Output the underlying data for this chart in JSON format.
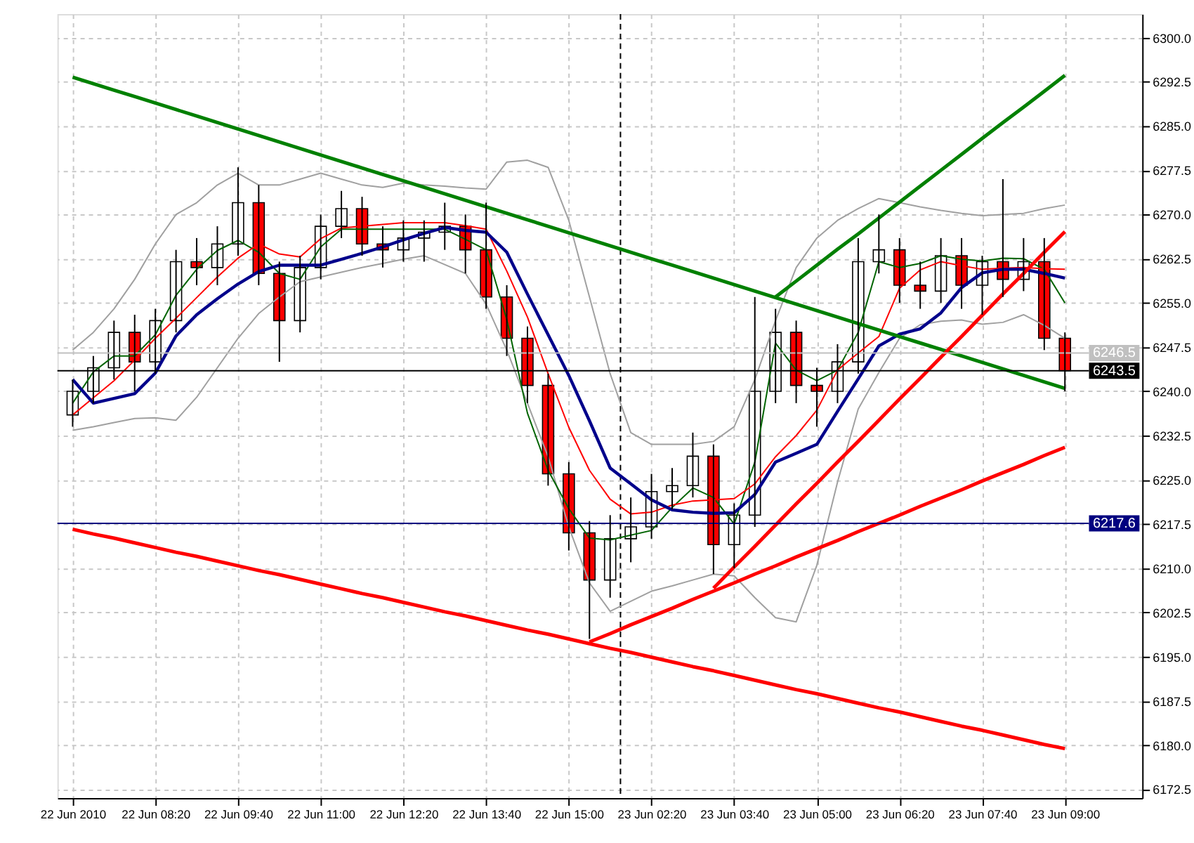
{
  "chart_data": {
    "type": "candlestick",
    "categories": [
      "22 Jun 2010",
      null,
      null,
      null,
      "22 Jun 08:20",
      null,
      null,
      null,
      "22 Jun 09:40",
      null,
      null,
      null,
      "22 Jun 11:00",
      null,
      null,
      null,
      "22 Jun 12:20",
      null,
      null,
      null,
      "22 Jun 13:40",
      null,
      null,
      null,
      "22 Jun 15:00",
      null,
      null,
      null,
      "23 Jun 02:20",
      null,
      null,
      null,
      "23 Jun 03:40",
      null,
      null,
      null,
      "23 Jun 05:00",
      null,
      null,
      null,
      "23 Jun 06:20",
      null,
      null,
      null,
      "23 Jun 07:40",
      null,
      null,
      null,
      "23 Jun 09:00"
    ],
    "ohlc": [
      [
        6236,
        6242,
        6234,
        6240
      ],
      [
        6240,
        6246,
        6238,
        6244
      ],
      [
        6244,
        6252,
        6242,
        6250
      ],
      [
        6250,
        6253,
        6240,
        6245
      ],
      [
        6245,
        6254,
        6243,
        6252
      ],
      [
        6252,
        6264,
        6250,
        6262
      ],
      [
        6262,
        6266,
        6258,
        6261
      ],
      [
        6261,
        6268,
        6258,
        6265
      ],
      [
        6265,
        6278,
        6263,
        6272
      ],
      [
        6272,
        6275,
        6258,
        6260
      ],
      [
        6260,
        6262,
        6245,
        6252
      ],
      [
        6252,
        6263,
        6250,
        6261
      ],
      [
        6261,
        6270,
        6259,
        6268
      ],
      [
        6268,
        6274,
        6266,
        6271
      ],
      [
        6271,
        6273,
        6263,
        6265
      ],
      [
        6265,
        6268,
        6261,
        6264
      ],
      [
        6264,
        6269,
        6262,
        6266
      ],
      [
        6266,
        6269,
        6262,
        6267
      ],
      [
        6267,
        6272,
        6264,
        6268
      ],
      [
        6268,
        6270,
        6260,
        6264
      ],
      [
        6264,
        6272,
        6254,
        6256
      ],
      [
        6256,
        6258,
        6246,
        6249
      ],
      [
        6249,
        6251,
        6238,
        6241
      ],
      [
        6241,
        6243,
        6224,
        6226
      ],
      [
        6226,
        6228,
        6213,
        6216
      ],
      [
        6216,
        6218,
        6198,
        6208
      ],
      [
        6208,
        6219,
        6205,
        6215
      ],
      [
        6215,
        6222,
        6211,
        6217
      ],
      [
        6217,
        6226,
        6215,
        6223
      ],
      [
        6223,
        6227,
        6220,
        6224
      ],
      [
        6224,
        6233,
        6222,
        6229
      ],
      [
        6229,
        6231,
        6209,
        6214
      ],
      [
        6214,
        6221,
        6210,
        6219
      ],
      [
        6219,
        6256,
        6217,
        6240
      ],
      [
        6240,
        6254,
        6238,
        6250
      ],
      [
        6250,
        6252,
        6238,
        6241
      ],
      [
        6241,
        6244,
        6234,
        6240
      ],
      [
        6240,
        6248,
        6238,
        6245
      ],
      [
        6245,
        6266,
        6243,
        6262
      ],
      [
        6262,
        6270,
        6260,
        6264
      ],
      [
        6264,
        6266,
        6255,
        6258
      ],
      [
        6258,
        6262,
        6254,
        6257
      ],
      [
        6257,
        6266,
        6255,
        6263
      ],
      [
        6263,
        6266,
        6254,
        6258
      ],
      [
        6258,
        6263,
        6253,
        6262
      ],
      [
        6262,
        6276,
        6256,
        6259
      ],
      [
        6259,
        6266,
        6257,
        6262
      ],
      [
        6262,
        6266,
        6247,
        6249
      ],
      [
        6249,
        6250,
        6240,
        6243.5
      ]
    ],
    "series": [
      {
        "type": "line",
        "color": "#a0a0a0",
        "values": [
          6247,
          6250,
          6254,
          6259,
          6265,
          6270,
          6272,
          6275,
          6277,
          6275,
          6275,
          6276,
          6277,
          6276,
          6275,
          6274.6,
          6275.3,
          6275,
          6274.8,
          6274.5,
          6274.3,
          6278.9,
          6279.2,
          6278,
          6269,
          6256,
          6243,
          6233,
          6231,
          6231,
          6231,
          6231.5,
          6234,
          6242,
          6252,
          6261,
          6266,
          6269,
          6271,
          6272.7,
          6272,
          6271.3,
          6270.7,
          6270.2,
          6269.8,
          6270,
          6270.2,
          6271,
          6271.6
        ]
      },
      {
        "type": "line",
        "color": "#a0a0a0",
        "values": [
          6233.4,
          6234,
          6234.7,
          6235.4,
          6235.5,
          6235.1,
          6239,
          6244,
          6249,
          6253.2,
          6256,
          6258.6,
          6259.4,
          6260.2,
          6261,
          6261.7,
          6262.4,
          6263,
          6261.5,
          6260,
          6254.8,
          6247,
          6238,
          6228.9,
          6217,
          6207.5,
          6202.7,
          6204.4,
          6206.1,
          6207,
          6208,
          6209,
          6208.7,
          6205,
          6201.6,
          6200.9,
          6210.5,
          6224.6,
          6237,
          6243.2,
          6249,
          6251.3,
          6251.9,
          6252.1,
          6251.4,
          6251.7,
          6253,
          6251.2,
          6249
        ]
      },
      {
        "type": "line",
        "color": "#006400",
        "values": [
          6238,
          6243.3,
          6246,
          6246,
          6249.6,
          6256.3,
          6260.7,
          6263.9,
          6265.6,
          6263.6,
          6260,
          6259,
          6264.5,
          6267.5,
          6267.5,
          6267.5,
          6267.5,
          6267.5,
          6267.5,
          6265.8,
          6264,
          6252.2,
          6236.3,
          6226.6,
          6220.1,
          6215.1,
          6214.8,
          6215.6,
          6216.4,
          6220.3,
          6223.6,
          6222,
          6217.5,
          6228,
          6248.2,
          6243.6,
          6241.8,
          6243.6,
          6250,
          6262,
          6261,
          6261.7,
          6263,
          6262.4,
          6262.1,
          6262.6,
          6262.5,
          6260.7,
          6255
        ]
      },
      {
        "type": "line",
        "color": "#ff0000",
        "values": [
          6236,
          6238.9,
          6241.8,
          6245.3,
          6249,
          6252.4,
          6255.9,
          6259.4,
          6262.6,
          6265,
          6263.3,
          6262.8,
          6265.9,
          6267.7,
          6268,
          6268.3,
          6268.6,
          6268.6,
          6268.6,
          6268.1,
          6267.5,
          6260.4,
          6252.6,
          6243,
          6233.9,
          6226.6,
          6221.7,
          6219.2,
          6219.5,
          6220.7,
          6221.4,
          6221.6,
          6221.8,
          6224.3,
          6228.9,
          6232.5,
          6236.8,
          6243.6,
          6246.5,
          6249.3,
          6257.5,
          6260.6,
          6262,
          6261.3,
          6260.7,
          6260.9,
          6261,
          6260.8,
          6260.7
        ]
      },
      {
        "type": "line",
        "color": "#00008b",
        "values": [
          6242,
          6238,
          6238.8,
          6239.6,
          6243.1,
          6249.4,
          6253,
          6255.7,
          6258.2,
          6260.3,
          6261.4,
          6261.4,
          6261.4,
          6262.4,
          6263.4,
          6264.5,
          6265.7,
          6266.8,
          6267.8,
          6267.3,
          6267,
          6263.6,
          6256.5,
          6249.6,
          6242.7,
          6235,
          6227,
          6224.3,
          6221.6,
          6219.9,
          6219.5,
          6219.3,
          6219.4,
          6222.5,
          6228,
          6229.5,
          6231,
          6236.6,
          6242.1,
          6247.7,
          6249.7,
          6250.6,
          6253.3,
          6257.6,
          6260.1,
          6260.7,
          6260.7,
          6260,
          6259.2
        ]
      },
      {
        "type": "line",
        "color": "#008000",
        "values": [
          6293.3,
          6292.2,
          6291.1,
          6290.0,
          6288.9,
          6287.8,
          6286.7,
          6285.6,
          6284.5,
          6283.4,
          6282.3,
          6281.2,
          6280.1,
          6279.0,
          6277.9,
          6276.8,
          6275.7,
          6274.6,
          6273.5,
          6272.4,
          6271.3,
          6270.2,
          6269.1,
          6268.0,
          6266.9,
          6265.8,
          6264.7,
          6263.6,
          6262.5,
          6261.4,
          6260.3,
          6259.2,
          6258.1,
          6257.0,
          6255.9,
          6254.8,
          6253.7,
          6252.6,
          6251.5,
          6250.4,
          6249.3,
          6248.2,
          6247.1,
          6246.0,
          6244.9,
          6243.8,
          6242.7,
          6241.6,
          6240.5
        ]
      },
      {
        "type": "line",
        "color": "#008000",
        "values": [
          null,
          null,
          null,
          null,
          null,
          null,
          null,
          null,
          null,
          null,
          null,
          null,
          null,
          null,
          null,
          null,
          null,
          null,
          null,
          null,
          null,
          null,
          null,
          null,
          null,
          null,
          null,
          null,
          null,
          null,
          null,
          null,
          null,
          null,
          6256.0,
          6258.7,
          6261.4,
          6264.1,
          6266.7,
          6269.4,
          6272.1,
          6274.8,
          6277.5,
          6280.2,
          6282.9,
          6285.6,
          6288.2,
          6290.9,
          6293.6
        ]
      },
      {
        "type": "line",
        "color": "#ff0000",
        "values": [
          6216.6,
          6215.8,
          6215.1,
          6214.3,
          6213.5,
          6212.7,
          6212.0,
          6211.2,
          6210.4,
          6209.6,
          6208.9,
          6208.1,
          6207.3,
          6206.5,
          6205.7,
          6205.0,
          6204.2,
          6203.4,
          6202.6,
          6201.9,
          6201.1,
          6200.3,
          6199.5,
          6198.8,
          6198.0,
          6197.2,
          6196.4,
          6195.7,
          6194.9,
          6194.1,
          6193.3,
          6192.6,
          6191.8,
          6191.0,
          6190.2,
          6189.4,
          6188.7,
          6187.9,
          6187.1,
          6186.3,
          6185.6,
          6184.8,
          6184.0,
          6183.2,
          6182.5,
          6181.7,
          6180.9,
          6180.1,
          6179.4
        ]
      },
      {
        "type": "line",
        "color": "#ff0000",
        "values": [
          null,
          null,
          null,
          null,
          null,
          null,
          null,
          null,
          null,
          null,
          null,
          null,
          null,
          null,
          null,
          null,
          null,
          null,
          null,
          null,
          null,
          null,
          null,
          null,
          null,
          6197.5,
          6198.9,
          6200.4,
          6201.8,
          6203.2,
          6204.7,
          6206.1,
          6207.5,
          6209.0,
          6210.4,
          6211.9,
          6213.3,
          6214.7,
          6216.2,
          6217.6,
          6219.0,
          6220.5,
          6221.9,
          6223.3,
          6224.8,
          6226.2,
          6227.6,
          6229.1,
          6230.5
        ]
      },
      {
        "type": "line",
        "color": "#ff0000",
        "values": [
          null,
          null,
          null,
          null,
          null,
          null,
          null,
          null,
          null,
          null,
          null,
          null,
          null,
          null,
          null,
          null,
          null,
          null,
          null,
          null,
          null,
          null,
          null,
          null,
          null,
          null,
          null,
          null,
          null,
          null,
          null,
          6206.6,
          6210.2,
          6213.7,
          6217.3,
          6220.9,
          6224.4,
          6228.0,
          6231.5,
          6235.1,
          6238.7,
          6242.2,
          6245.8,
          6249.3,
          6252.9,
          6256.5,
          6260.0,
          6263.6,
          6267.1
        ]
      }
    ],
    "ylim": [
      6171,
      6304
    ],
    "yticks": [
      {
        "value": 6172.5,
        "label": "6172.5"
      },
      {
        "value": 6180,
        "label": "6180.0"
      },
      {
        "value": 6187.5,
        "label": "6187.5"
      },
      {
        "value": 6195,
        "label": "6195.0"
      },
      {
        "value": 6202.5,
        "label": "6202.5"
      },
      {
        "value": 6210,
        "label": "6210.0"
      },
      {
        "value": 6217.5,
        "label": "6217.5"
      },
      {
        "value": 6225,
        "label": "6225.0"
      },
      {
        "value": 6232.5,
        "label": "6232.5"
      },
      {
        "value": 6240,
        "label": "6240.0"
      },
      {
        "value": 6247.5,
        "label": "6247.5"
      },
      {
        "value": 6255,
        "label": "6255.0"
      },
      {
        "value": 6262.5,
        "label": "6262.5"
      },
      {
        "value": 6270,
        "label": "6270.0"
      },
      {
        "value": 6277.5,
        "label": "6277.5"
      },
      {
        "value": 6285,
        "label": "6285.0"
      },
      {
        "value": 6292.5,
        "label": "6292.5"
      },
      {
        "value": 6300,
        "label": "6300.0"
      }
    ],
    "grid": true,
    "ref_lines": [
      {
        "axis": "y",
        "value": 6217.6,
        "label": "6217.6",
        "color": "#000080"
      },
      {
        "axis": "y",
        "value": 6246.5,
        "label": "6246.5",
        "color": "#c0c0c0"
      },
      {
        "axis": "y",
        "value": 6243.5,
        "label": "6243.5",
        "color": "#000000"
      }
    ]
  }
}
